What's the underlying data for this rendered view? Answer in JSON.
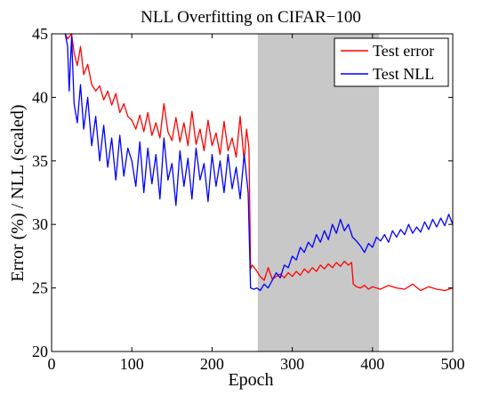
{
  "chart_data": {
    "type": "line",
    "title": "NLL Overfitting on CIFAR−100",
    "xlabel": "Epoch",
    "ylabel": "Error (%) / NLL (scaled)",
    "xlim": [
      0,
      500
    ],
    "ylim": [
      20,
      45
    ],
    "xticks": [
      "0",
      "100",
      "200",
      "300",
      "400",
      "500"
    ],
    "yticks": [
      "20",
      "25",
      "30",
      "35",
      "40",
      "45"
    ],
    "grid": false,
    "legend_position": "top-right",
    "shaded_region": {
      "x_start": 257,
      "x_end": 408,
      "color": "#c8c8c8"
    },
    "series": [
      {
        "name": "Test error",
        "color": "#ff0000",
        "points": [
          [
            17,
            45.0
          ],
          [
            20,
            44.6
          ],
          [
            25,
            45.0
          ],
          [
            28,
            43.5
          ],
          [
            32,
            42.5
          ],
          [
            36,
            44.0
          ],
          [
            40,
            41.8
          ],
          [
            45,
            42.6
          ],
          [
            50,
            41.0
          ],
          [
            55,
            40.5
          ],
          [
            60,
            40.9
          ],
          [
            65,
            39.8
          ],
          [
            70,
            40.5
          ],
          [
            75,
            39.4
          ],
          [
            80,
            40.3
          ],
          [
            85,
            38.8
          ],
          [
            90,
            39.5
          ],
          [
            95,
            38.5
          ],
          [
            100,
            38.2
          ],
          [
            105,
            37.5
          ],
          [
            110,
            38.6
          ],
          [
            115,
            37.3
          ],
          [
            120,
            38.8
          ],
          [
            125,
            37.0
          ],
          [
            130,
            38.0
          ],
          [
            135,
            36.8
          ],
          [
            140,
            39.5
          ],
          [
            145,
            37.3
          ],
          [
            150,
            36.6
          ],
          [
            155,
            38.4
          ],
          [
            160,
            36.5
          ],
          [
            165,
            38.0
          ],
          [
            170,
            36.2
          ],
          [
            175,
            38.9
          ],
          [
            180,
            36.3
          ],
          [
            185,
            37.5
          ],
          [
            190,
            35.8
          ],
          [
            195,
            38.2
          ],
          [
            200,
            36.2
          ],
          [
            205,
            37.2
          ],
          [
            210,
            35.5
          ],
          [
            215,
            38.1
          ],
          [
            220,
            35.8
          ],
          [
            225,
            36.8
          ],
          [
            230,
            35.3
          ],
          [
            235,
            38.5
          ],
          [
            240,
            35.0
          ],
          [
            243,
            37.5
          ],
          [
            246,
            36.0
          ],
          [
            248,
            26.5
          ],
          [
            250,
            26.8
          ],
          [
            255,
            26.4
          ],
          [
            260,
            25.9
          ],
          [
            265,
            25.6
          ],
          [
            270,
            26.6
          ],
          [
            275,
            25.7
          ],
          [
            280,
            25.9
          ],
          [
            285,
            26.1
          ],
          [
            290,
            25.8
          ],
          [
            295,
            26.2
          ],
          [
            300,
            25.9
          ],
          [
            305,
            26.3
          ],
          [
            310,
            26.0
          ],
          [
            315,
            26.5
          ],
          [
            320,
            26.2
          ],
          [
            325,
            26.6
          ],
          [
            330,
            26.3
          ],
          [
            335,
            26.8
          ],
          [
            340,
            26.5
          ],
          [
            345,
            26.9
          ],
          [
            350,
            26.6
          ],
          [
            355,
            27.0
          ],
          [
            360,
            26.7
          ],
          [
            365,
            27.1
          ],
          [
            370,
            26.8
          ],
          [
            374,
            27.0
          ],
          [
            376,
            25.3
          ],
          [
            380,
            25.1
          ],
          [
            385,
            25.0
          ],
          [
            390,
            25.2
          ],
          [
            395,
            24.9
          ],
          [
            400,
            25.1
          ],
          [
            410,
            24.9
          ],
          [
            420,
            25.2
          ],
          [
            430,
            25.0
          ],
          [
            440,
            24.9
          ],
          [
            450,
            25.3
          ],
          [
            460,
            24.8
          ],
          [
            470,
            25.1
          ],
          [
            480,
            24.9
          ],
          [
            490,
            24.8
          ],
          [
            500,
            25.0
          ]
        ]
      },
      {
        "name": "Test NLL",
        "color": "#0000ff",
        "points": [
          [
            17,
            45.0
          ],
          [
            20,
            44.0
          ],
          [
            22,
            40.5
          ],
          [
            25,
            44.8
          ],
          [
            28,
            39.5
          ],
          [
            32,
            38.0
          ],
          [
            36,
            41.0
          ],
          [
            40,
            37.5
          ],
          [
            45,
            40.0
          ],
          [
            50,
            36.2
          ],
          [
            55,
            38.5
          ],
          [
            60,
            35.0
          ],
          [
            65,
            37.8
          ],
          [
            70,
            34.5
          ],
          [
            75,
            36.8
          ],
          [
            80,
            33.5
          ],
          [
            85,
            37.0
          ],
          [
            90,
            33.8
          ],
          [
            95,
            36.0
          ],
          [
            100,
            35.0
          ],
          [
            105,
            33.0
          ],
          [
            110,
            36.5
          ],
          [
            115,
            32.5
          ],
          [
            120,
            36.0
          ],
          [
            125,
            33.2
          ],
          [
            130,
            35.5
          ],
          [
            135,
            32.0
          ],
          [
            140,
            36.8
          ],
          [
            145,
            33.5
          ],
          [
            150,
            34.8
          ],
          [
            155,
            31.5
          ],
          [
            160,
            35.8
          ],
          [
            165,
            33.0
          ],
          [
            170,
            35.2
          ],
          [
            175,
            32.0
          ],
          [
            180,
            36.0
          ],
          [
            185,
            33.5
          ],
          [
            190,
            34.8
          ],
          [
            195,
            31.8
          ],
          [
            200,
            35.5
          ],
          [
            205,
            33.0
          ],
          [
            210,
            35.0
          ],
          [
            215,
            32.5
          ],
          [
            220,
            35.5
          ],
          [
            225,
            32.8
          ],
          [
            230,
            34.5
          ],
          [
            235,
            32.0
          ],
          [
            240,
            35.5
          ],
          [
            245,
            32.5
          ],
          [
            248,
            25.0
          ],
          [
            252,
            24.9
          ],
          [
            256,
            25.0
          ],
          [
            260,
            24.8
          ],
          [
            265,
            25.3
          ],
          [
            270,
            25.0
          ],
          [
            275,
            25.6
          ],
          [
            280,
            26.2
          ],
          [
            285,
            25.8
          ],
          [
            290,
            26.8
          ],
          [
            295,
            26.6
          ],
          [
            300,
            27.5
          ],
          [
            305,
            27.2
          ],
          [
            310,
            28.2
          ],
          [
            315,
            27.8
          ],
          [
            320,
            28.6
          ],
          [
            325,
            28.2
          ],
          [
            330,
            29.2
          ],
          [
            335,
            28.6
          ],
          [
            340,
            29.5
          ],
          [
            345,
            28.8
          ],
          [
            350,
            30.0
          ],
          [
            355,
            29.3
          ],
          [
            360,
            30.4
          ],
          [
            365,
            29.5
          ],
          [
            370,
            30.0
          ],
          [
            375,
            29.0
          ],
          [
            380,
            28.7
          ],
          [
            385,
            28.3
          ],
          [
            390,
            27.8
          ],
          [
            395,
            28.5
          ],
          [
            400,
            28.2
          ],
          [
            405,
            29.0
          ],
          [
            410,
            28.7
          ],
          [
            415,
            29.2
          ],
          [
            420,
            28.6
          ],
          [
            425,
            29.5
          ],
          [
            430,
            29.0
          ],
          [
            435,
            29.6
          ],
          [
            440,
            29.2
          ],
          [
            445,
            30.0
          ],
          [
            450,
            29.3
          ],
          [
            455,
            29.8
          ],
          [
            460,
            29.4
          ],
          [
            465,
            30.2
          ],
          [
            470,
            29.6
          ],
          [
            475,
            30.4
          ],
          [
            480,
            29.8
          ],
          [
            485,
            30.5
          ],
          [
            490,
            29.9
          ],
          [
            495,
            30.8
          ],
          [
            500,
            30.0
          ]
        ]
      }
    ]
  }
}
